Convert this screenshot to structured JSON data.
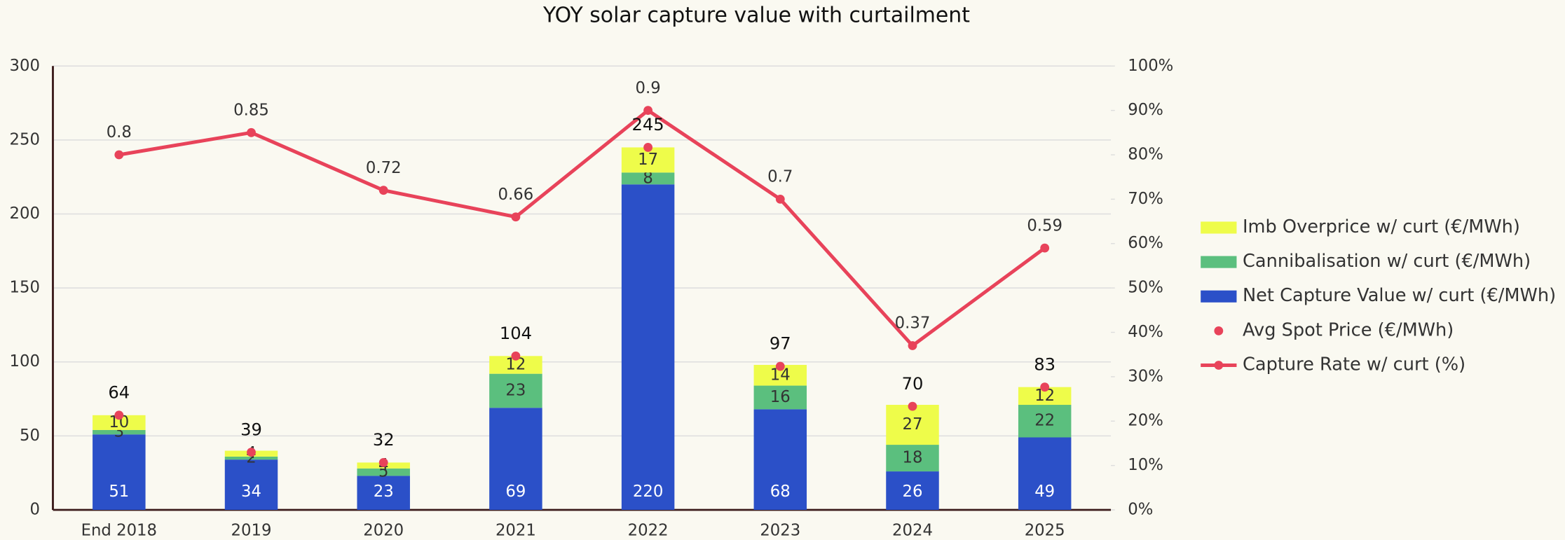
{
  "chart_data": {
    "type": "bar",
    "title": "YOY solar capture value with curtailment",
    "categories": [
      "End 2018",
      "2019",
      "2020",
      "2021",
      "2022",
      "2023",
      "2024",
      "2025"
    ],
    "series": [
      {
        "name": "Net Capture Value w/ curt (€/MWh)",
        "type": "bar",
        "color": "#2b50c8",
        "values": [
          51,
          34,
          23,
          69,
          220,
          68,
          26,
          49
        ]
      },
      {
        "name": "Cannibalisation w/ curt (€/MWh)",
        "type": "bar",
        "color": "#5bbf7e",
        "values": [
          3,
          2,
          5,
          23,
          8,
          16,
          18,
          22
        ]
      },
      {
        "name": "Imb Overprice w/ curt (€/MWh)",
        "type": "bar",
        "color": "#eefc4a",
        "values": [
          10,
          4,
          4,
          12,
          17,
          14,
          27,
          12
        ]
      },
      {
        "name": "Avg Spot Price (€/MWh)",
        "type": "scatter",
        "color": "#e8435a",
        "values": [
          64,
          39,
          32,
          104,
          245,
          97,
          70,
          83
        ]
      },
      {
        "name": "Capture Rate w/ curt (%)",
        "type": "line",
        "color": "#e8435a",
        "axis": "y2",
        "values": [
          0.8,
          0.85,
          0.72,
          0.66,
          0.9,
          0.7,
          0.37,
          0.59
        ]
      }
    ],
    "ylim": [
      0,
      300
    ],
    "yticks": [
      0,
      50,
      100,
      150,
      200,
      250,
      300
    ],
    "y2lim": [
      0,
      1
    ],
    "y2ticks": [
      {
        "value": 0,
        "label": "0%"
      },
      {
        "value": 0.1,
        "label": "10%"
      },
      {
        "value": 0.2,
        "label": "20%"
      },
      {
        "value": 0.3,
        "label": "30%"
      },
      {
        "value": 0.4,
        "label": "40%"
      },
      {
        "value": 0.5,
        "label": "50%"
      },
      {
        "value": 0.6,
        "label": "60%"
      },
      {
        "value": 0.7,
        "label": "70%"
      },
      {
        "value": 0.8,
        "label": "80%"
      },
      {
        "value": 0.9,
        "label": "90%"
      },
      {
        "value": 1,
        "label": "100%"
      }
    ],
    "grid": true,
    "legend": "right"
  }
}
